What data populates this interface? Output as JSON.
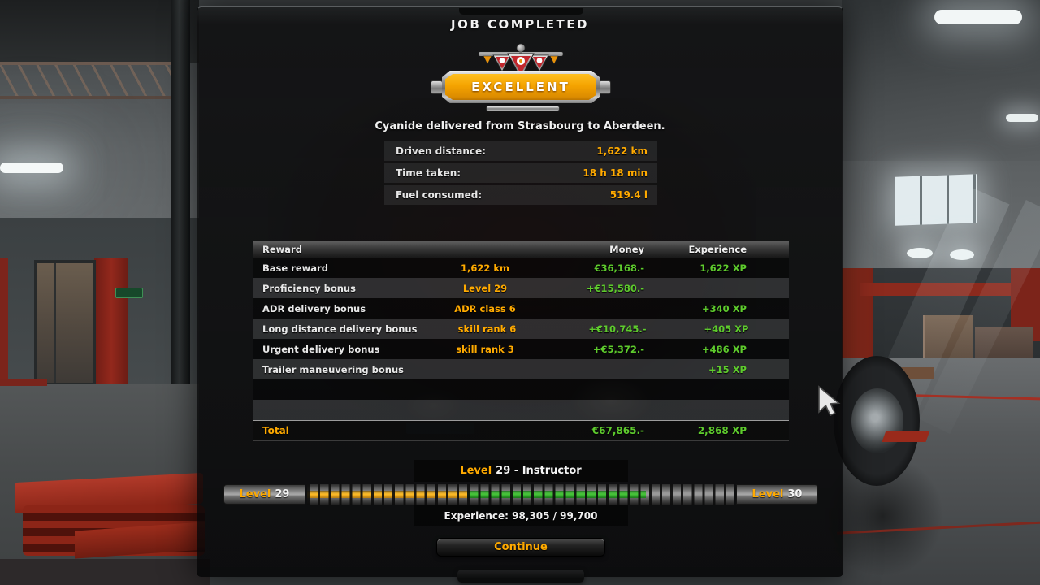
{
  "title": "JOB COMPLETED",
  "badge": {
    "rating": "EXCELLENT"
  },
  "delivery_message": "Cyanide delivered from Strasbourg to Aberdeen.",
  "stats": [
    {
      "label": "Driven distance:",
      "value": "1,622 km"
    },
    {
      "label": "Time taken:",
      "value": "18 h 18 min"
    },
    {
      "label": "Fuel consumed:",
      "value": "519.4 l"
    }
  ],
  "reward_table": {
    "header": {
      "reward": "Reward",
      "money": "Money",
      "experience": "Experience"
    },
    "rows": [
      {
        "label": "Base reward",
        "detail": "1,622 km",
        "money": "€36,168.-",
        "xp": "1,622 XP"
      },
      {
        "label": "Proficiency bonus",
        "detail": "Level 29",
        "money": "+€15,580.-",
        "xp": ""
      },
      {
        "label": "ADR delivery bonus",
        "detail": "ADR class 6",
        "money": "",
        "xp": "+340 XP"
      },
      {
        "label": "Long distance delivery bonus",
        "detail": "skill rank 6",
        "money": "+€10,745.-",
        "xp": "+405 XP"
      },
      {
        "label": "Urgent delivery bonus",
        "detail": "skill rank 3",
        "money": "+€5,372.-",
        "xp": "+486 XP"
      },
      {
        "label": "Trailer maneuvering bonus",
        "detail": "",
        "money": "",
        "xp": "+15 XP"
      }
    ],
    "total": {
      "label": "Total",
      "money": "€67,865.-",
      "xp": "2,868 XP"
    }
  },
  "level": {
    "word": "Level",
    "current": "29",
    "next": "30",
    "title_rest": "29 - Instructor",
    "experience_text": "Experience: 98,305 / 99,700",
    "progress": {
      "orange_pct": 37.5,
      "green_pct": 41.8
    }
  },
  "continue_label": "Continue",
  "colors": {
    "accent_orange": "#ffaa00",
    "money_green": "#5ecb2d",
    "badge_orange": "#f5a300",
    "xp_bar_green": "#2fc01f"
  }
}
